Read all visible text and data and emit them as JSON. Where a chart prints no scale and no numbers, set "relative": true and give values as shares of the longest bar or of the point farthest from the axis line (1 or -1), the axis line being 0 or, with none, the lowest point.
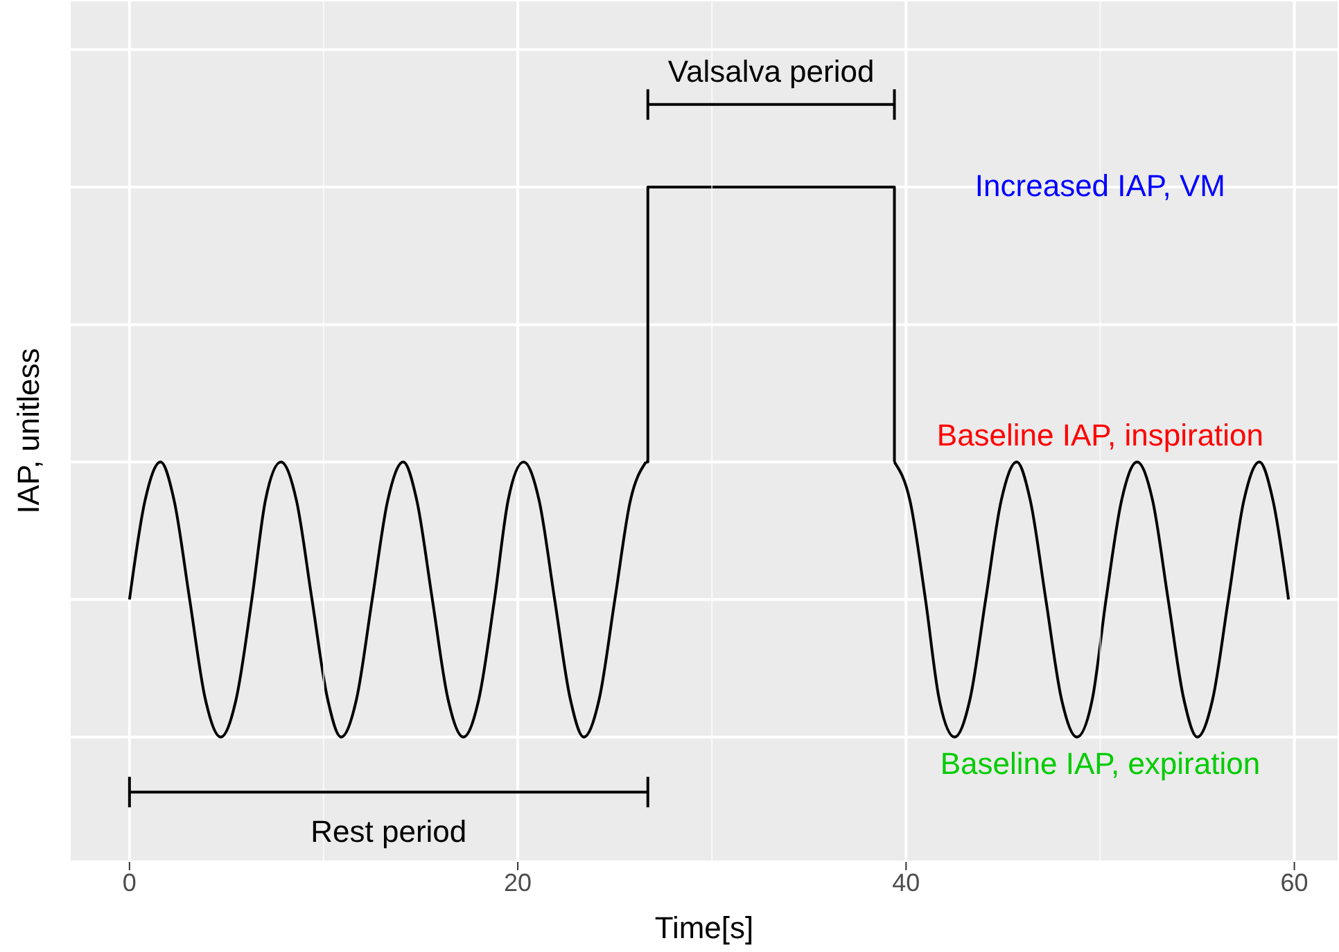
{
  "chart_data": {
    "type": "line",
    "relative": true,
    "xlabel": "Time[s]",
    "ylabel": "IAP, unitless",
    "xlim": [
      -3.1,
      62.3
    ],
    "xticks": [
      0,
      20,
      40,
      60
    ],
    "grid": true,
    "marker": "none",
    "line_style": "solid",
    "series": [
      {
        "color": "#000000",
        "x": [
          0,
          0.8,
          1.6,
          2.3,
          3.1,
          3.9,
          4.7,
          5.5,
          6.3,
          7.0,
          7.8,
          8.6,
          9.4,
          10.2,
          10.9,
          11.7,
          12.5,
          13.3,
          14.1,
          14.8,
          15.6,
          16.4,
          17.2,
          18.0,
          18.8,
          19.5,
          20.3,
          21.1,
          21.9,
          22.7,
          23.4,
          24.2,
          25.0,
          25.8,
          26.6
        ],
        "values": [
          0.25,
          0.43,
          0.5,
          0.43,
          0.25,
          0.07,
          0,
          0.07,
          0.25,
          0.43,
          0.5,
          0.43,
          0.25,
          0.07,
          0,
          0.07,
          0.25,
          0.43,
          0.5,
          0.43,
          0.25,
          0.07,
          0,
          0.07,
          0.25,
          0.43,
          0.5,
          0.43,
          0.25,
          0.07,
          0,
          0.07,
          0.25,
          0.43,
          0.5
        ]
      },
      {
        "type": "step",
        "color": "#000000",
        "x": [
          26.6,
          26.7,
          39.4
        ],
        "values": [
          0.5,
          1,
          0.5
        ]
      },
      {
        "color": "#000000",
        "x": [
          39.4,
          40.2,
          41.0,
          41.7,
          42.5,
          43.3,
          44.1,
          44.9,
          45.7,
          46.4,
          47.2,
          48.0,
          48.8,
          49.6,
          50.3,
          51.1,
          51.9,
          52.7,
          53.5,
          54.3,
          55.0,
          55.8,
          56.6,
          57.4,
          58.2,
          58.9,
          59.7
        ],
        "values": [
          0.5,
          0.43,
          0.25,
          0.07,
          0,
          0.07,
          0.25,
          0.43,
          0.5,
          0.43,
          0.25,
          0.07,
          0,
          0.07,
          0.25,
          0.43,
          0.5,
          0.43,
          0.25,
          0.07,
          0,
          0.07,
          0.25,
          0.43,
          0.5,
          0.43,
          0.25
        ]
      }
    ],
    "annotations": [
      "Rest period",
      "Valsalva period",
      "Increased IAP, VM",
      "Baseline IAP, inspiration",
      "Baseline IAP, expiration"
    ]
  }
}
